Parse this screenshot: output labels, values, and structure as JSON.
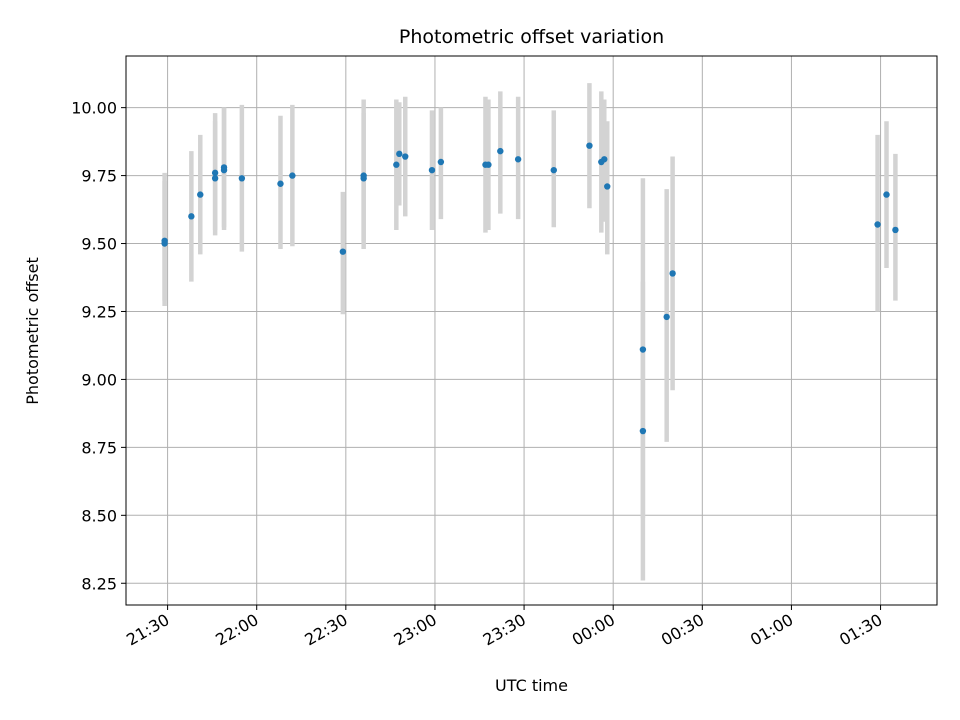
{
  "chart_data": {
    "type": "scatter",
    "title": "Photometric offset variation",
    "xlabel": "UTC time",
    "ylabel": "Photometric offset",
    "grid": true,
    "legend": "none",
    "marker_color": "#1f77b4",
    "errorbar_color": "#d3d3d3",
    "xlim": [
      "21:16",
      "01:49"
    ],
    "ylim": [
      8.17,
      10.19
    ],
    "x_ticks": [
      "21:30",
      "22:00",
      "22:30",
      "23:00",
      "23:30",
      "00:00",
      "00:30",
      "01:00",
      "01:30"
    ],
    "y_ticks": [
      "8.25",
      "8.50",
      "8.75",
      "9.00",
      "9.25",
      "9.50",
      "9.75",
      "10.00"
    ],
    "series": [
      {
        "x": [
          "21:29",
          "21:29",
          "21:38",
          "21:41",
          "21:46",
          "21:46",
          "21:49",
          "21:49",
          "21:55",
          "22:08",
          "22:12",
          "22:29",
          "22:36",
          "22:36",
          "22:47",
          "22:48",
          "22:50",
          "22:59",
          "23:02",
          "23:17",
          "23:18",
          "23:22",
          "23:28",
          "23:40",
          "23:52",
          "23:56",
          "23:57",
          "23:58",
          "00:10",
          "00:10",
          "00:18",
          "00:20",
          "01:29",
          "01:32",
          "01:35"
        ],
        "y": [
          9.5,
          9.51,
          9.6,
          9.68,
          9.76,
          9.74,
          9.77,
          9.78,
          9.74,
          9.72,
          9.75,
          9.47,
          9.74,
          9.75,
          9.79,
          9.83,
          9.82,
          9.77,
          9.8,
          9.79,
          9.79,
          9.84,
          9.81,
          9.77,
          9.86,
          9.8,
          9.81,
          9.71,
          9.11,
          8.81,
          9.23,
          9.39,
          9.57,
          9.68,
          9.55
        ],
        "err_low": [
          9.27,
          9.29,
          9.36,
          9.46,
          9.55,
          9.53,
          9.56,
          9.55,
          9.47,
          9.48,
          9.49,
          9.24,
          9.48,
          9.51,
          9.55,
          9.64,
          9.6,
          9.55,
          9.59,
          9.54,
          9.55,
          9.61,
          9.59,
          9.56,
          9.63,
          9.54,
          9.58,
          9.46,
          8.49,
          8.26,
          8.77,
          8.96,
          9.25,
          9.41,
          9.29
        ],
        "err_high": [
          9.73,
          9.76,
          9.84,
          9.9,
          9.98,
          9.95,
          10.0,
          10.0,
          10.01,
          9.97,
          10.01,
          9.69,
          9.98,
          10.03,
          10.03,
          10.02,
          10.04,
          9.99,
          10.0,
          10.04,
          10.03,
          10.06,
          10.04,
          9.99,
          10.09,
          10.06,
          10.03,
          9.95,
          9.74,
          9.36,
          9.7,
          9.82,
          9.9,
          9.95,
          9.83
        ]
      }
    ]
  }
}
